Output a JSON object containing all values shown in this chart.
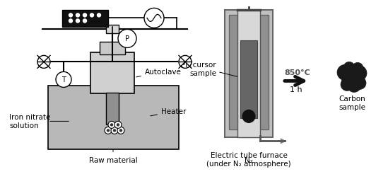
{
  "bg_color": "#ffffff",
  "lc": "#000000",
  "gray1": "#aaaaaa",
  "gray2": "#888888",
  "gray3": "#cccccc",
  "gray4": "#b8b8b8",
  "dark": "#333333",
  "heater_fill": "#b0b0b0",
  "autoclave_fill": "#c8c8c8",
  "ctrl_fill": "#1a1a1a",
  "labels": {
    "iron_nitrate": "Iron nitrate\nsolution",
    "heater": "Heater",
    "autoclave": "Autoclave",
    "raw_material": "Raw material",
    "precursor": "Precursor\nsample",
    "carbon": "Carbon\nsample",
    "n2": "N₂",
    "temp": "850°C",
    "time": "1 h",
    "furnace": "Electric tube furnace\n(under N₂ atmosphere)"
  },
  "fs": 7.5
}
